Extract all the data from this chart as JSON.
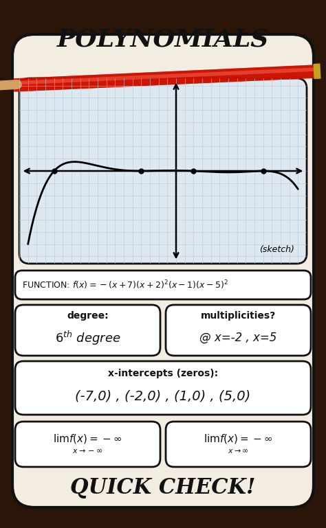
{
  "title": "POLYNOMIALS",
  "subtitle": "QUICK CHECK!",
  "bg_outer": "#2a1508",
  "bg_card": "#f2ede0",
  "bg_graph": "#dde8f0",
  "graph_grid_color": "#b8ccd8",
  "function_label": "FUNCTION: ",
  "function_math": "$f(x) = -(x+7)(x+2)^2(x-1)(x-5)^2$",
  "degree_label": "degree:",
  "degree_value": "$6^{th}$ degree",
  "mult_label": "multiplicities?",
  "mult_value": "@ x=-2 , x=5",
  "intercepts_label": "x-intercepts (zeros):",
  "intercepts_value": "(-7,0) , (-2,0) , (1,0) , (5,0)",
  "sketch_label": "(sketch)",
  "pencil_color": "#cc1100",
  "pencil_shadow": "#6a0000",
  "pencil_tip": "#e8c870",
  "pencil_ferule": "#c8a020",
  "card_border_color": "#111111",
  "text_color": "#111111"
}
